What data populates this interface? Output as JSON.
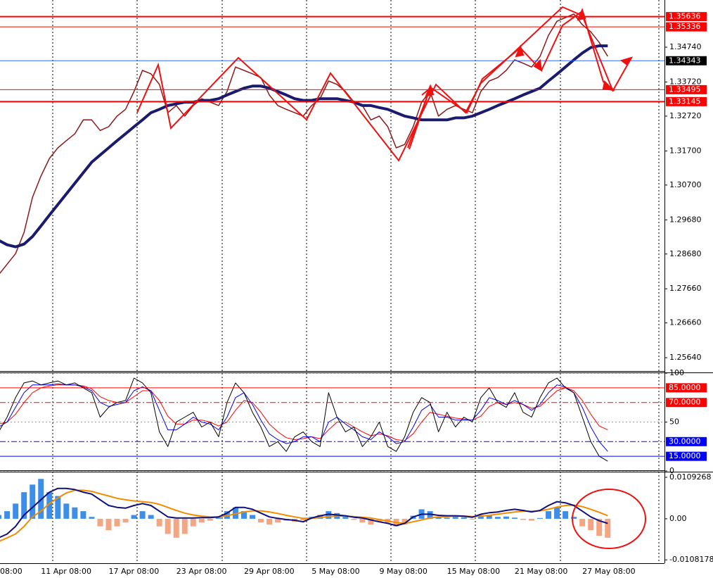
{
  "chart_data": [
    {
      "type": "line",
      "categories": [
        "08:00",
        null,
        null,
        null,
        null,
        null,
        null,
        null,
        "11 Apr 08:00",
        null,
        null,
        null,
        null,
        null,
        null,
        null,
        "17 Apr 08:00",
        null,
        null,
        null,
        null,
        null,
        null,
        null,
        "23 Apr 08:00",
        null,
        null,
        null,
        null,
        null,
        null,
        null,
        "29 Apr 08:00",
        null,
        null,
        null,
        null,
        null,
        null,
        null,
        "5 May 08:00",
        null,
        null,
        null,
        null,
        null,
        null,
        null,
        "9 May 08:00",
        null,
        null,
        null,
        null,
        null,
        null,
        null,
        "15 May 08:00",
        null,
        null,
        null,
        null,
        null,
        null,
        null,
        "21 May 08:00",
        null,
        null,
        null,
        null,
        null,
        null,
        null,
        "27 May 08:00",
        null,
        null,
        null
      ],
      "ylim": [
        1.2525,
        1.3602
      ],
      "yticks": [
        {
          "value": 1.3474,
          "label": "1.34740"
        },
        {
          "value": 1.3372,
          "label": "1.33720"
        },
        {
          "value": 1.3272,
          "label": "1.32720"
        },
        {
          "value": 1.317,
          "label": "1.31700"
        },
        {
          "value": 1.307,
          "label": "1.30700"
        },
        {
          "value": 1.2968,
          "label": "1.29680"
        },
        {
          "value": 1.2868,
          "label": "1.28680"
        },
        {
          "value": 1.2766,
          "label": "1.27660"
        },
        {
          "value": 1.2666,
          "label": "1.26660"
        },
        {
          "value": 1.2564,
          "label": "1.25640"
        }
      ],
      "levels": [
        {
          "value": 1.35636,
          "color": "#ff0000",
          "box": "#ff0000",
          "width": 2
        },
        {
          "value": 1.35336,
          "color": "#ff0000",
          "box": "#ff0000",
          "width": 1
        },
        {
          "value": 1.34343,
          "color": "#3366ff",
          "box": "#000000",
          "width": 1
        },
        {
          "value": 1.33495,
          "color": "#ff0000",
          "box": "#ff0000",
          "width": 1
        },
        {
          "value": 1.33145,
          "color": "#ff0000",
          "box": "#ff0000",
          "width": 2
        }
      ],
      "series": [
        {
          "color": "#8b1a1a",
          "width": 1.5,
          "values": [
            null,
            null,
            null,
            1.2807,
            1.2838,
            1.2869,
            1.2931,
            1.3034,
            1.3096,
            1.3148,
            1.3179,
            1.32,
            1.322,
            1.3261,
            1.3261,
            1.323,
            1.3241,
            1.3272,
            1.3292,
            1.3344,
            1.3406,
            1.3396,
            1.3365,
            1.3282,
            1.3303,
            1.3272,
            1.3303,
            1.3323,
            1.3313,
            1.3303,
            1.3344,
            1.3416,
            1.3406,
            1.3396,
            1.3385,
            1.3334,
            1.3303,
            1.3292,
            1.3282,
            1.3272,
            1.3303,
            1.3323,
            1.3375,
            1.3365,
            1.3344,
            1.3313,
            1.3303,
            1.3261,
            1.3272,
            1.3241,
            1.3179,
            1.3189,
            1.3241,
            1.3313,
            1.3344,
            1.3272,
            1.3292,
            1.3303,
            1.3292,
            1.3282,
            1.3344,
            1.3375,
            1.3385,
            1.3406,
            1.3437,
            1.3427,
            1.3416,
            1.3447,
            1.3509,
            1.355,
            1.3561,
            1.3571,
            1.354,
            1.3519,
            1.3488,
            1.3447
          ]
        },
        {
          "color": "#1a1a6e",
          "width": 4,
          "values": [
            null,
            null,
            null,
            1.2908,
            1.2895,
            1.2889,
            1.2897,
            1.2919,
            1.295,
            1.2982,
            1.3013,
            1.3044,
            1.3075,
            1.3106,
            1.3137,
            1.3158,
            1.3179,
            1.32,
            1.322,
            1.3241,
            1.3261,
            1.3282,
            1.3292,
            1.3303,
            1.3308,
            1.3313,
            1.3313,
            1.3318,
            1.3318,
            1.3323,
            1.3334,
            1.3344,
            1.3354,
            1.336,
            1.336,
            1.3354,
            1.3344,
            1.3334,
            1.3323,
            1.3318,
            1.3318,
            1.3323,
            1.3323,
            1.3323,
            1.3318,
            1.3313,
            1.3303,
            1.3303,
            1.3297,
            1.3292,
            1.3282,
            1.3272,
            1.3267,
            1.3261,
            1.3261,
            1.3261,
            1.3261,
            1.3267,
            1.3267,
            1.3272,
            1.3282,
            1.3292,
            1.3303,
            1.3313,
            1.3323,
            1.3334,
            1.3344,
            1.3354,
            1.3375,
            1.3395,
            1.3416,
            1.3437,
            1.3457,
            1.3473,
            1.3478,
            1.3478
          ]
        }
      ]
    },
    {
      "type": "line",
      "ylim": [
        0,
        100
      ],
      "yticks": [
        100,
        50,
        0
      ],
      "grid": true,
      "levels": [
        {
          "value": 85,
          "label": "85.0000",
          "color": "#ff0000",
          "box": "#ff0000",
          "width": 1
        },
        {
          "value": 70,
          "label": "70.0000",
          "color": "#ff0000",
          "box": "#ff0000",
          "width": 1,
          "style": "dashdot"
        },
        {
          "value": 30,
          "label": "30.0000",
          "color": "#0000ff",
          "box": "#0000ff",
          "width": 1,
          "style": "dashdot"
        },
        {
          "value": 15,
          "label": "15.0000",
          "color": "#0000ff",
          "box": "#0000ff",
          "width": 1
        }
      ],
      "series": [
        {
          "color": "#ff0000",
          "width": 1,
          "values": [
            null,
            null,
            null,
            48,
            50,
            58,
            70,
            80,
            85,
            87,
            88,
            88,
            88,
            87,
            84,
            76,
            72,
            70,
            70,
            76,
            82,
            82,
            72,
            56,
            48,
            48,
            52,
            52,
            50,
            46,
            50,
            62,
            72,
            70,
            60,
            48,
            40,
            34,
            32,
            33,
            35,
            33,
            42,
            50,
            50,
            45,
            40,
            36,
            38,
            36,
            32,
            31,
            38,
            50,
            60,
            58,
            56,
            54,
            53,
            52,
            56,
            66,
            70,
            68,
            70,
            68,
            64,
            66,
            74,
            82,
            85,
            82,
            72,
            58,
            46,
            42
          ]
        },
        {
          "color": "#0000ff",
          "width": 1,
          "values": [
            null,
            null,
            null,
            45,
            50,
            65,
            80,
            88,
            88,
            88,
            89,
            88,
            88,
            86,
            82,
            70,
            66,
            68,
            70,
            82,
            86,
            82,
            62,
            42,
            42,
            48,
            55,
            50,
            48,
            42,
            55,
            75,
            80,
            68,
            52,
            38,
            32,
            28,
            30,
            35,
            35,
            30,
            50,
            55,
            48,
            42,
            35,
            32,
            40,
            35,
            28,
            30,
            45,
            62,
            68,
            55,
            55,
            52,
            52,
            52,
            62,
            75,
            72,
            68,
            72,
            68,
            62,
            68,
            80,
            88,
            86,
            80,
            65,
            45,
            30,
            20
          ]
        },
        {
          "color": "#000000",
          "width": 1,
          "values": [
            null,
            null,
            null,
            40,
            55,
            75,
            90,
            92,
            88,
            90,
            92,
            88,
            90,
            85,
            80,
            55,
            65,
            70,
            72,
            95,
            90,
            80,
            40,
            25,
            50,
            55,
            60,
            45,
            50,
            35,
            70,
            90,
            80,
            60,
            45,
            25,
            30,
            20,
            35,
            40,
            30,
            25,
            80,
            55,
            40,
            45,
            25,
            35,
            50,
            25,
            20,
            35,
            60,
            75,
            70,
            40,
            60,
            45,
            55,
            50,
            75,
            85,
            70,
            65,
            80,
            60,
            55,
            75,
            90,
            95,
            85,
            80,
            55,
            30,
            15,
            10
          ]
        }
      ]
    },
    {
      "type": "bar",
      "ylim": [
        -0.0117,
        0.0124
      ],
      "yticks": [
        0.0109268,
        {
          "value": 0,
          "label": "0.00"
        },
        -0.0108178
      ],
      "series": [
        {
          "type": "bar",
          "color": "#3d8ee8",
          "negative_color": "#f4a582",
          "values": [
            null,
            null,
            null,
            0.001,
            0.002,
            0.004,
            0.007,
            0.009,
            0.0105,
            0.007,
            0.006,
            0.004,
            0.003,
            0.002,
            0.0005,
            -0.002,
            -0.003,
            -0.002,
            -0.001,
            0.001,
            0.002,
            0.001,
            -0.002,
            -0.004,
            -0.005,
            -0.004,
            -0.002,
            -0.001,
            -0.0005,
            0.0003,
            0.002,
            0.003,
            0.002,
            0.001,
            -0.001,
            -0.0015,
            -0.001,
            -0.0005,
            -0.0008,
            -0.0004,
            0.0005,
            0.001,
            0.002,
            0.0015,
            0.0005,
            -0.0003,
            -0.001,
            -0.0015,
            -0.0008,
            -0.001,
            -0.002,
            -0.0015,
            0.0008,
            0.0025,
            0.002,
            0.0005,
            0.0003,
            0.0005,
            0.0004,
            -0.0002,
            0.001,
            0.0008,
            0.0005,
            0.0006,
            0.0003,
            -0.0003,
            -0.0005,
            0.0002,
            0.002,
            0.003,
            0.002,
            0.0005,
            -0.002,
            -0.003,
            -0.0045,
            -0.005
          ]
        },
        {
          "type": "line",
          "color": "#f28c00",
          "width": 2,
          "values": [
            null,
            null,
            null,
            -0.006,
            -0.005,
            -0.004,
            -0.002,
            0.0005,
            0.002,
            0.004,
            0.0055,
            0.0068,
            0.0075,
            0.0075,
            0.0072,
            0.0066,
            0.006,
            0.0054,
            0.005,
            0.0047,
            0.0045,
            0.0043,
            0.0038,
            0.003,
            0.0022,
            0.0015,
            0.001,
            0.0007,
            0.0005,
            0.0005,
            0.0008,
            0.0013,
            0.0018,
            0.0021,
            0.0021,
            0.0018,
            0.0014,
            0.0009,
            0.0005,
            0.0001,
            0.0001,
            0.0003,
            0.0006,
            0.0007,
            0.0007,
            0.0006,
            0.0004,
            0.0002,
            -0.0002,
            -0.0006,
            -0.001,
            -0.0012,
            -0.0008,
            -0.0003,
            0.0002,
            0.0005,
            0.0006,
            0.0007,
            0.0007,
            0.0006,
            0.0007,
            0.0009,
            0.0012,
            0.0015,
            0.0018,
            0.002,
            0.002,
            0.0021,
            0.0025,
            0.0031,
            0.0035,
            0.0036,
            0.0032,
            0.0025,
            0.0017,
            0.0008
          ]
        },
        {
          "type": "line",
          "color": "#10107a",
          "width": 2,
          "values": [
            null,
            null,
            null,
            -0.005,
            -0.004,
            -0.002,
            0.001,
            0.003,
            0.005,
            0.007,
            0.008,
            0.008,
            0.0077,
            0.007,
            0.0065,
            0.005,
            0.0035,
            0.003,
            0.0028,
            0.0035,
            0.004,
            0.0035,
            0.002,
            0.0005,
            0.0002,
            0.0002,
            0.0002,
            0.0003,
            0.0003,
            0.0005,
            0.0015,
            0.003,
            0.003,
            0.0025,
            0.0015,
            0.0005,
            0.0001,
            -0.0002,
            -0.0004,
            -0.0008,
            0.0002,
            0.0008,
            0.0012,
            0.001,
            0.0008,
            0.0004,
            0.0002,
            -0.0003,
            -0.0008,
            -0.0012,
            -0.0018,
            -0.0012,
            0.0005,
            0.0012,
            0.0012,
            0.0009,
            0.0008,
            0.0008,
            0.0007,
            0.0004,
            0.0012,
            0.0016,
            0.0018,
            0.0022,
            0.0025,
            0.0022,
            0.0018,
            0.0022,
            0.0035,
            0.0045,
            0.0042,
            0.0035,
            0.002,
            0.0005,
            -0.0005,
            -0.0012
          ]
        }
      ]
    }
  ]
}
